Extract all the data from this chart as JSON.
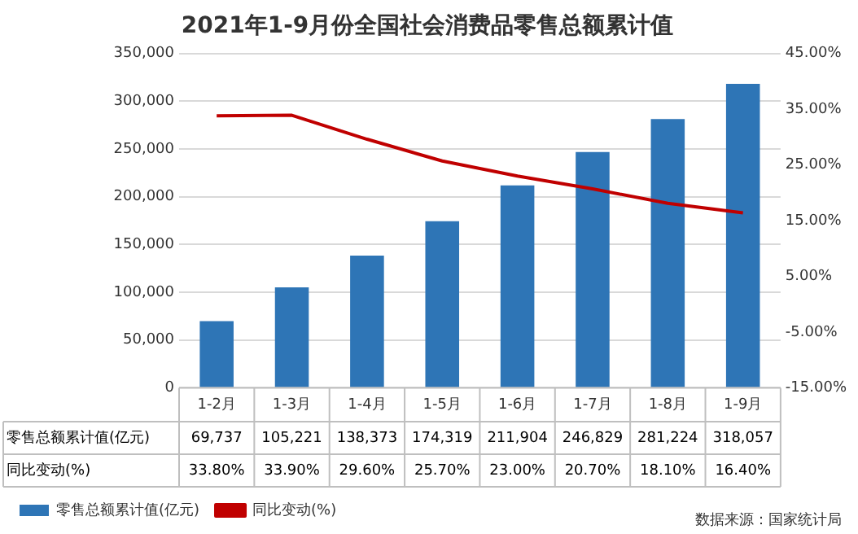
{
  "chart_data": {
    "type": "bar",
    "title": "2021年1-9月份全国社会消费品零售总额累计值",
    "categories": [
      "1-2月",
      "1-3月",
      "1-4月",
      "1-5月",
      "1-6月",
      "1-7月",
      "1-8月",
      "1-9月"
    ],
    "series": [
      {
        "name": "零售总额累计值(亿元)",
        "color": "#2e75b6",
        "values": [
          69737,
          105221,
          138373,
          174319,
          211904,
          246829,
          281224,
          318057
        ],
        "value_labels": [
          "69,737",
          "105,221",
          "138,373",
          "174,319",
          "211,904",
          "246,829",
          "281,224",
          "318,057"
        ]
      },
      {
        "name": "同比变动(%)",
        "type": "line",
        "axis": "y2",
        "color": "#c00000",
        "values": [
          33.8,
          33.9,
          29.6,
          25.7,
          23.0,
          20.7,
          18.1,
          16.4
        ],
        "value_labels": [
          "33.80%",
          "33.90%",
          "29.60%",
          "25.70%",
          "23.00%",
          "20.70%",
          "18.10%",
          "16.40%"
        ]
      }
    ],
    "ylim": [
      0,
      350000
    ],
    "yticks": [
      {
        "value": 0,
        "label": "0"
      },
      {
        "value": 50000,
        "label": "50,000"
      },
      {
        "value": 100000,
        "label": "100,000"
      },
      {
        "value": 150000,
        "label": "150,000"
      },
      {
        "value": 200000,
        "label": "200,000"
      },
      {
        "value": 250000,
        "label": "250,000"
      },
      {
        "value": 300000,
        "label": "300,000"
      },
      {
        "value": 350000,
        "label": "350,000"
      }
    ],
    "y2lim": [
      -15,
      45
    ],
    "y2ticks": [
      {
        "value": -15,
        "label": "-15.00%"
      },
      {
        "value": -5,
        "label": "-5.00%"
      },
      {
        "value": 5,
        "label": "5.00%"
      },
      {
        "value": 15,
        "label": "15.00%"
      },
      {
        "value": 25,
        "label": "25.00%"
      },
      {
        "value": 35,
        "label": "35.00%"
      },
      {
        "value": 45,
        "label": "45.00%"
      }
    ],
    "grid": "y",
    "legend": "bottom left",
    "marker": "none",
    "line_style": "solid",
    "annotations": [
      "数据来源：国家统计局"
    ]
  }
}
